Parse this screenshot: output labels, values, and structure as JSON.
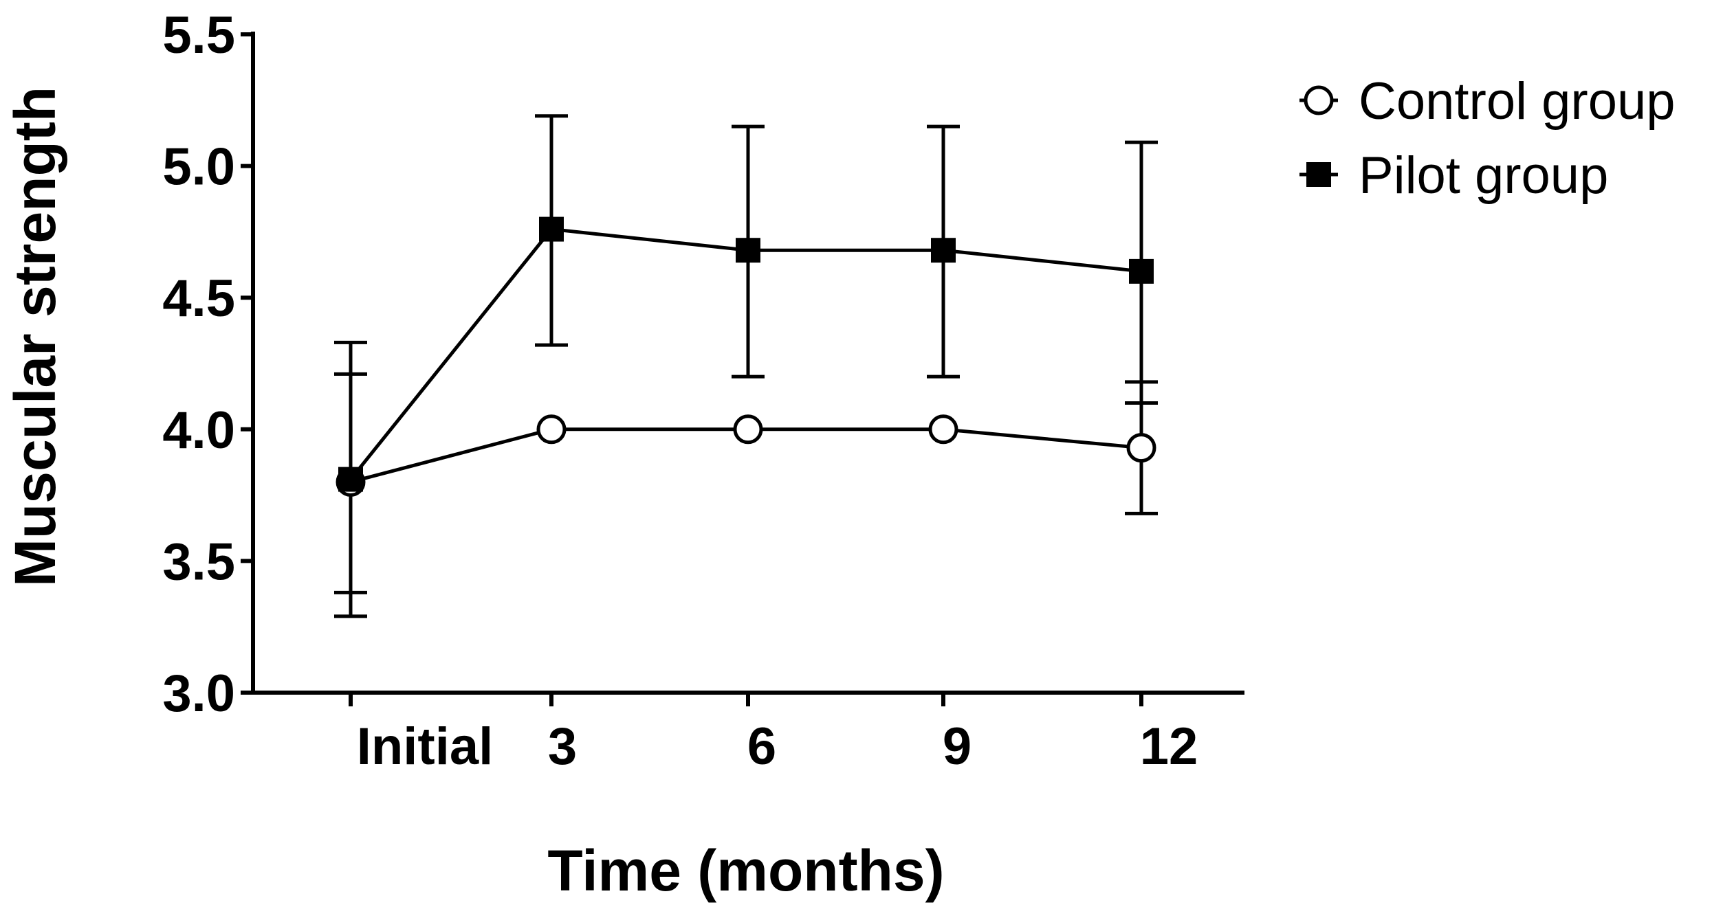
{
  "chart_data": {
    "type": "line",
    "title": "",
    "xlabel": "Time (months)",
    "ylabel": "Muscular strength",
    "categories": [
      "Initial",
      "3",
      "6",
      "9",
      "12"
    ],
    "ylim": [
      3.0,
      5.5
    ],
    "yticks": [
      "3.0",
      "3.5",
      "4.0",
      "4.5",
      "5.0",
      "5.5"
    ],
    "legend_position": "top-right",
    "series": [
      {
        "name": "Control group",
        "marker": "open-circle",
        "values": [
          3.8,
          4.0,
          4.0,
          4.0,
          3.93
        ],
        "error_upper": [
          4.21,
          4.0,
          4.0,
          4.0,
          4.18
        ],
        "error_lower": [
          3.38,
          4.0,
          4.0,
          4.0,
          3.68
        ]
      },
      {
        "name": "Pilot group",
        "marker": "filled-square",
        "values": [
          3.81,
          4.76,
          4.68,
          4.68,
          4.6
        ],
        "error_upper": [
          4.33,
          5.19,
          5.15,
          5.15,
          5.09
        ],
        "error_lower": [
          3.29,
          4.32,
          4.2,
          4.2,
          4.1
        ]
      }
    ]
  }
}
